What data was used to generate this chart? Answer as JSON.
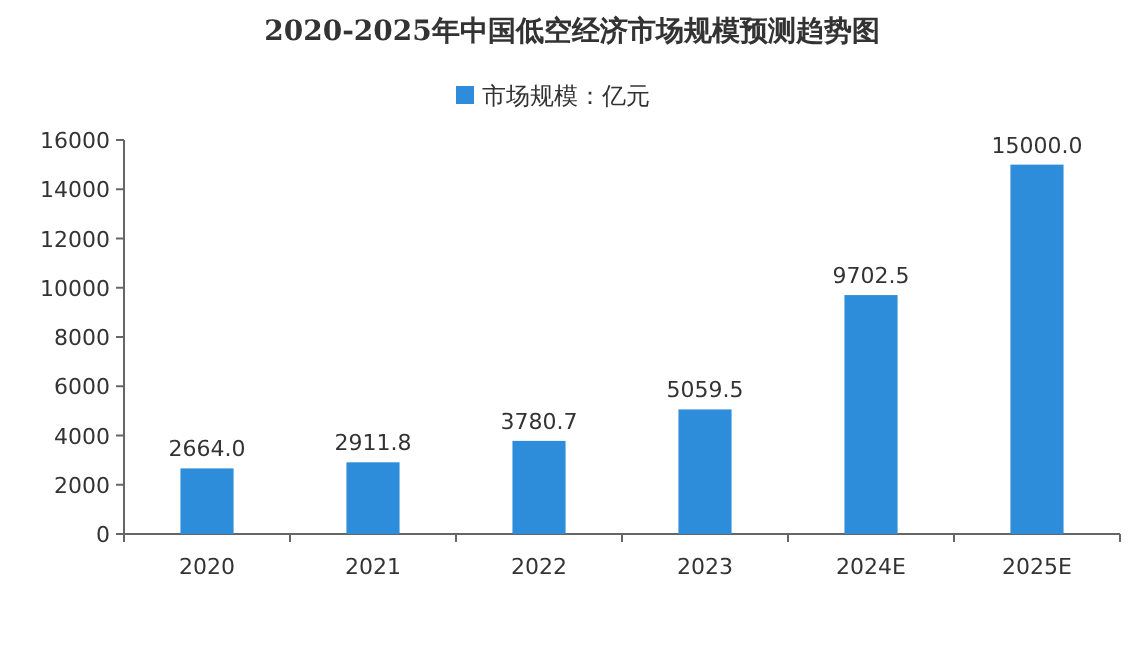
{
  "chart_data": {
    "type": "bar",
    "title": "2020-2025年中国低空经济市场规模预测趋势图",
    "categories": [
      "2020",
      "2021",
      "2022",
      "2023",
      "2024E",
      "2025E"
    ],
    "series": [
      {
        "name": "市场规模：亿元",
        "color": "#2e8ddb",
        "values": [
          2664.0,
          2911.8,
          3780.7,
          5059.5,
          9702.5,
          15000.0
        ],
        "value_labels": [
          "2664.0",
          "2911.8",
          "3780.7",
          "5059.5",
          "9702.5",
          "15000.0"
        ]
      }
    ],
    "ylim": [
      0,
      16000
    ],
    "yticks": [
      0,
      2000,
      4000,
      6000,
      8000,
      10000,
      12000,
      14000,
      16000
    ],
    "legend": "top",
    "grid": false
  }
}
